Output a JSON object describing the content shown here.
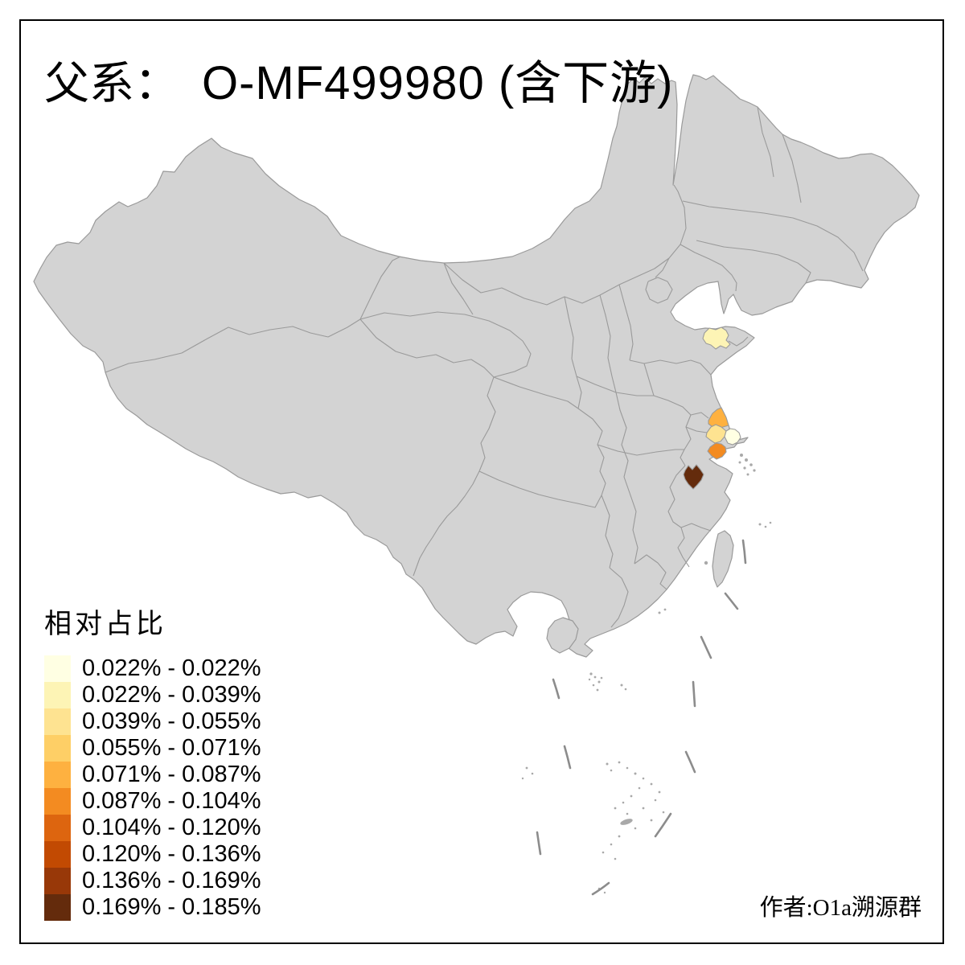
{
  "title": {
    "prefix": "父系：",
    "main": "O-MF499980 (含下游)"
  },
  "legend": {
    "title": "相对占比",
    "items": [
      {
        "range": "0.022% - 0.022%",
        "color": "#FFFFE3"
      },
      {
        "range": "0.022% - 0.039%",
        "color": "#FDF4B5"
      },
      {
        "range": "0.039% - 0.055%",
        "color": "#FEE391"
      },
      {
        "range": "0.055% - 0.071%",
        "color": "#FECF66"
      },
      {
        "range": "0.071% - 0.087%",
        "color": "#FEB140"
      },
      {
        "range": "0.087% - 0.104%",
        "color": "#F38B21"
      },
      {
        "range": "0.104% - 0.120%",
        "color": "#DD650F"
      },
      {
        "range": "0.120% - 0.136%",
        "color": "#C24A02"
      },
      {
        "range": "0.136% - 0.169%",
        "color": "#983808"
      },
      {
        "range": "0.169% - 0.185%",
        "color": "#642B0C"
      }
    ]
  },
  "attribution": "作者:O1a溯源群",
  "map": {
    "land_color": "#d3d3d3",
    "border_color": "#9a9a9a",
    "sea_color": "#ffffff",
    "dash_line_color": "#8c8c8c",
    "islet_color": "#a9a9a9",
    "frame_color": "#000000",
    "highlighted_regions": [
      {
        "area": "shandong-peninsula",
        "legend_class": "0.022% - 0.039%"
      },
      {
        "area": "jiangsu-coast-north",
        "legend_class": "0.071% - 0.087%"
      },
      {
        "area": "jiangsu-central",
        "legend_class": "0.039% - 0.055%"
      },
      {
        "area": "jiangsu-yangtze-mouth",
        "legend_class": "0.022% - 0.022%"
      },
      {
        "area": "north-zhejiang",
        "legend_class": "0.087% - 0.104%"
      },
      {
        "area": "west-zhejiang-inland",
        "legend_class": "0.169% - 0.185%"
      }
    ]
  }
}
